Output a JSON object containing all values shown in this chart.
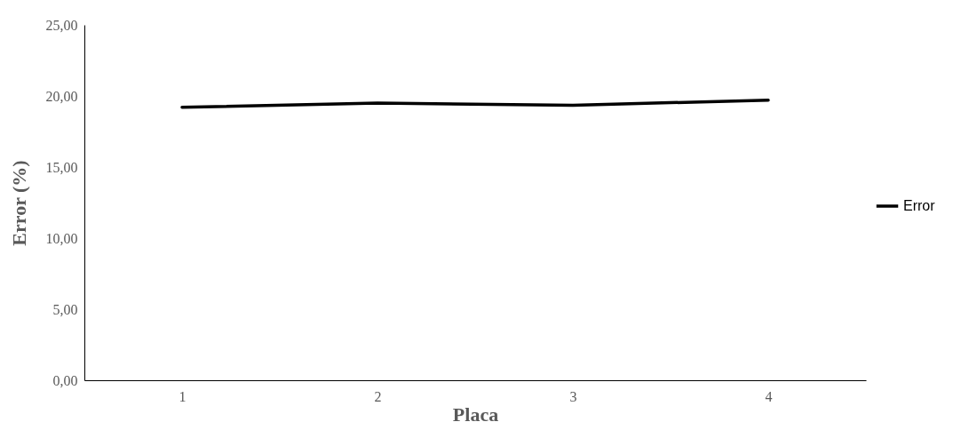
{
  "chart_data": {
    "type": "line",
    "xlabel": "Placa",
    "ylabel": "Error (%)",
    "categories": [
      "1",
      "2",
      "3",
      "4"
    ],
    "series": [
      {
        "name": "Error",
        "color": "#000000",
        "values": [
          19.2,
          19.5,
          19.35,
          19.7
        ]
      }
    ],
    "ylim": [
      0,
      25
    ],
    "yticks": [
      {
        "value": 0,
        "label": "0,00"
      },
      {
        "value": 5,
        "label": "5,00"
      },
      {
        "value": 10,
        "label": "10,00"
      },
      {
        "value": 15,
        "label": "15,00"
      },
      {
        "value": 20,
        "label": "20,00"
      },
      {
        "value": 25,
        "label": "25,00"
      }
    ],
    "grid": false,
    "legend": "right",
    "marker": "none",
    "line_style": "solid"
  }
}
